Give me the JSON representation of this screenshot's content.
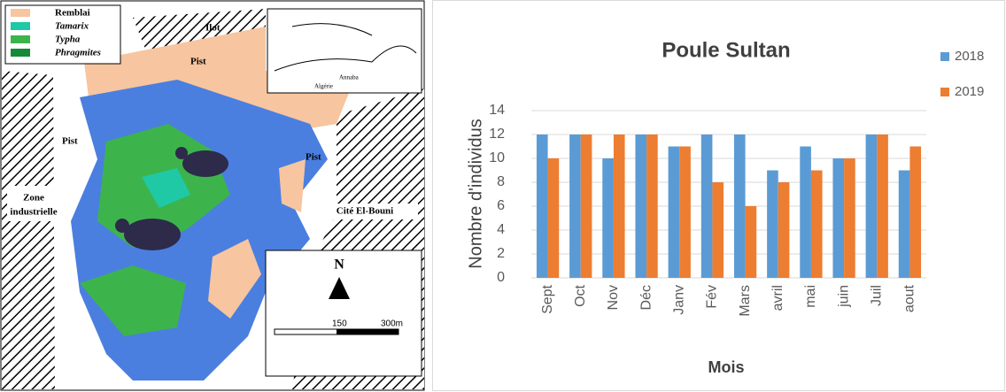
{
  "map": {
    "legend": [
      "Remblai",
      "Tamarix",
      "Typha",
      "Phragmites"
    ],
    "labels": {
      "ilot": "Ilot",
      "pist": "Pist",
      "zone": [
        "Zone",
        "industrielle"
      ],
      "cite": "Cité El-Bouni",
      "north": "N",
      "scale_mid": "150",
      "scale_end": "300m",
      "algerie": "Algérie",
      "annaba": "Annaba"
    }
  },
  "chart_data": {
    "type": "bar",
    "title": "Poule Sultan",
    "x_label": "Mois",
    "y_label": "Nombre d'individus",
    "categories": [
      "Sept",
      "Oct",
      "Nov",
      "Déc",
      "Janv",
      "Fév",
      "Mars",
      "avril",
      "mai",
      "juin",
      "Juil",
      "aout"
    ],
    "series": [
      {
        "name": "2018",
        "color": "#5b9bd5",
        "values": [
          12,
          12,
          10,
          12,
          11,
          12,
          12,
          9,
          11,
          10,
          12,
          9
        ]
      },
      {
        "name": "2019",
        "color": "#ed7d31",
        "values": [
          10,
          12,
          12,
          12,
          11,
          8,
          6,
          8,
          9,
          10,
          12,
          11
        ]
      }
    ],
    "ylim": [
      0,
      14
    ],
    "yticks": [
      0,
      2,
      4,
      6,
      8,
      10,
      12,
      14
    ],
    "grid": true,
    "legend": "right"
  }
}
